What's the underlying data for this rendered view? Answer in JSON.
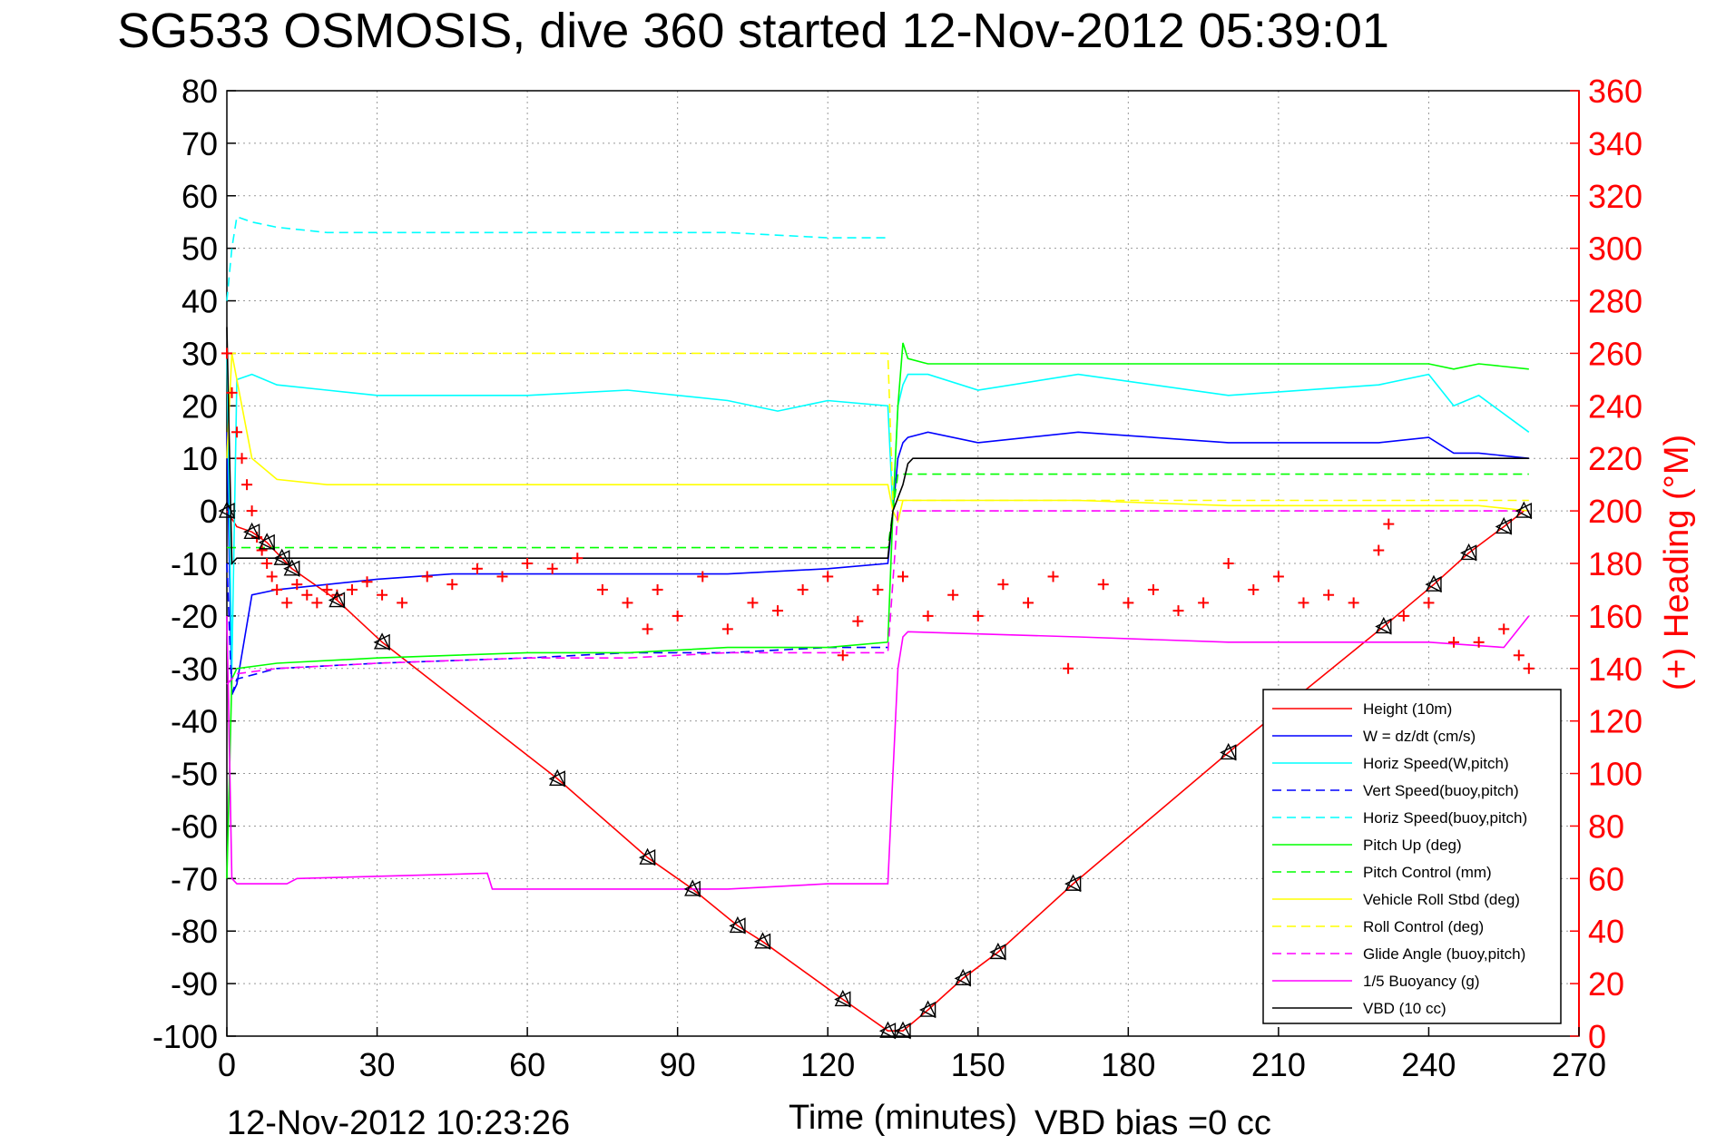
{
  "chart_data": {
    "type": "line",
    "title": "SG533 OSMOSIS, dive 360 started 12-Nov-2012 05:39:01",
    "xlabel": "Time (minutes)",
    "ylabel_right": "(+) Heading (°M)",
    "footer_timestamp": "12-Nov-2012 10:23:26",
    "footer_note": "VBD bias =0 cc",
    "xlim": [
      0,
      270
    ],
    "ylim": [
      -100,
      80
    ],
    "ylim_right": [
      0,
      360
    ],
    "x_ticks": [
      "0",
      "30",
      "60",
      "90",
      "120",
      "150",
      "180",
      "210",
      "240",
      "270"
    ],
    "y_ticks": [
      "80",
      "70",
      "60",
      "50",
      "40",
      "30",
      "20",
      "10",
      "0",
      "-10",
      "-20",
      "-30",
      "-40",
      "-50",
      "-60",
      "-70",
      "-80",
      "-90",
      "-100"
    ],
    "y_right_ticks": [
      "360",
      "340",
      "320",
      "300",
      "280",
      "260",
      "240",
      "220",
      "200",
      "180",
      "160",
      "140",
      "120",
      "100",
      "80",
      "60",
      "40",
      "20",
      "0"
    ],
    "grid": true,
    "legend_position": "lower-right",
    "series": [
      {
        "name": "Height (10m)",
        "color": "#ff0000",
        "style": "solid",
        "x": [
          0,
          2,
          5,
          8,
          11,
          13,
          22,
          31,
          66,
          84,
          93,
          102,
          107,
          123,
          132,
          135,
          140,
          147,
          154,
          169,
          200,
          231,
          241,
          248,
          255,
          259
        ],
        "y": [
          0,
          -3,
          -4,
          -6,
          -9,
          -11,
          -17,
          -25,
          -51,
          -66,
          -72,
          -79,
          -82,
          -93,
          -99,
          -99,
          -95,
          -89,
          -84,
          -71,
          -46,
          -22,
          -14,
          -8,
          -3,
          0
        ]
      },
      {
        "name": "W = dz/dt (cm/s)",
        "color": "#0000ff",
        "style": "solid",
        "x": [
          0,
          1,
          2,
          5,
          10,
          20,
          30,
          45,
          60,
          80,
          100,
          120,
          132,
          133,
          134,
          135,
          136,
          140,
          150,
          170,
          200,
          230,
          240,
          245,
          250,
          260
        ],
        "y": [
          15,
          -35,
          -33,
          -16,
          -15,
          -14,
          -13,
          -12,
          -12,
          -12,
          -12,
          -11,
          -10,
          0,
          10,
          13,
          14,
          15,
          13,
          15,
          13,
          13,
          14,
          11,
          11,
          10
        ]
      },
      {
        "name": "Horiz Speed(W,pitch)",
        "color": "#00ffff",
        "style": "solid",
        "x": [
          0,
          1,
          2,
          5,
          10,
          20,
          30,
          45,
          60,
          80,
          100,
          110,
          120,
          132,
          133,
          134,
          135,
          136,
          140,
          150,
          170,
          200,
          230,
          240,
          245,
          250,
          260
        ],
        "y": [
          30,
          -30,
          25,
          26,
          24,
          23,
          22,
          22,
          22,
          23,
          21,
          19,
          21,
          20,
          0,
          20,
          24,
          26,
          26,
          23,
          26,
          22,
          24,
          26,
          20,
          22,
          15
        ]
      },
      {
        "name": "Vert Speed(buoy,pitch)",
        "color": "#0000ff",
        "style": "dashed",
        "x": [
          0,
          1,
          2,
          10,
          30,
          60,
          80,
          100,
          120,
          132
        ],
        "y": [
          -10,
          -35,
          -32,
          -30,
          -29,
          -28,
          -27,
          -27,
          -26,
          -26
        ]
      },
      {
        "name": "Horiz Speed(buoy,pitch)",
        "color": "#00ffff",
        "style": "dashed",
        "x": [
          0,
          1,
          2,
          5,
          10,
          20,
          30,
          45,
          60,
          80,
          100,
          120,
          132
        ],
        "y": [
          40,
          50,
          56,
          55,
          54,
          53,
          53,
          53,
          53,
          53,
          53,
          52,
          52
        ]
      },
      {
        "name": "Pitch Up (deg)",
        "color": "#00ff00",
        "style": "solid",
        "x": [
          0,
          1,
          2,
          10,
          30,
          60,
          80,
          100,
          120,
          132,
          133,
          134,
          135,
          136,
          140,
          150,
          170,
          200,
          230,
          240,
          245,
          250,
          260
        ],
        "y": [
          -70,
          -32,
          -30,
          -29,
          -28,
          -27,
          -27,
          -26,
          -26,
          -25,
          0,
          20,
          32,
          29,
          28,
          28,
          28,
          28,
          28,
          28,
          27,
          28,
          27
        ]
      },
      {
        "name": "Pitch Control (mm)",
        "color": "#00ff00",
        "style": "dashed",
        "x": [
          0,
          2,
          132,
          133,
          134,
          135,
          260
        ],
        "y": [
          -7,
          -7,
          -7,
          0,
          7,
          7,
          7
        ]
      },
      {
        "name": "Vehicle Roll Stbd (deg)",
        "color": "#ffff00",
        "style": "solid",
        "x": [
          0,
          1,
          2,
          5,
          10,
          20,
          40,
          60,
          80,
          100,
          120,
          132,
          133,
          134,
          135,
          140,
          150,
          170,
          200,
          230,
          240,
          250,
          260
        ],
        "y": [
          10,
          30,
          25,
          10,
          6,
          5,
          5,
          5,
          5,
          5,
          5,
          5,
          0,
          -2,
          2,
          2,
          2,
          2,
          1,
          1,
          1,
          1,
          0
        ]
      },
      {
        "name": "Roll Control (deg)",
        "color": "#ffff00",
        "style": "dashed",
        "x": [
          0,
          2,
          10,
          132,
          133,
          134,
          260
        ],
        "y": [
          30,
          30,
          30,
          30,
          2,
          2,
          2
        ]
      },
      {
        "name": "Glide Angle (buoy,pitch)",
        "color": "#ff00ff",
        "style": "dashed",
        "x": [
          0,
          2,
          10,
          30,
          60,
          80,
          100,
          120,
          132,
          134,
          260
        ],
        "y": [
          -33,
          -31,
          -30,
          -29,
          -28,
          -28,
          -27,
          -27,
          -27,
          0,
          0
        ]
      },
      {
        "name": "1/5 Buoyancy (g)",
        "color": "#ff00ff",
        "style": "solid",
        "x": [
          0,
          1,
          2,
          12,
          14,
          52,
          53,
          85,
          100,
          120,
          132,
          133,
          134,
          135,
          136,
          170,
          200,
          240,
          255,
          260
        ],
        "y": [
          -20,
          -70,
          -71,
          -71,
          -70,
          -69,
          -72,
          -72,
          -72,
          -71,
          -71,
          -50,
          -30,
          -24,
          -23,
          -24,
          -25,
          -25,
          -26,
          -20
        ]
      },
      {
        "name": "VBD (10 cc)",
        "color": "#000000",
        "style": "solid",
        "x": [
          0,
          1,
          2,
          132,
          133,
          135,
          136,
          137,
          260
        ],
        "y": [
          35,
          -10,
          -9,
          -9,
          0,
          5,
          9,
          10,
          10
        ]
      }
    ],
    "heading": {
      "name": "(+) Heading",
      "color": "#ff0000",
      "marker": "+",
      "axis": "right",
      "x": [
        0,
        1,
        2,
        3,
        4,
        5,
        6,
        7,
        8,
        9,
        10,
        12,
        14,
        16,
        18,
        20,
        22,
        25,
        28,
        31,
        35,
        40,
        45,
        50,
        55,
        60,
        65,
        70,
        75,
        80,
        84,
        86,
        90,
        95,
        100,
        105,
        110,
        115,
        120,
        123,
        126,
        130,
        135,
        140,
        145,
        150,
        155,
        160,
        165,
        168,
        175,
        180,
        185,
        190,
        195,
        200,
        205,
        210,
        215,
        220,
        225,
        230,
        232,
        235,
        240,
        245,
        250,
        255,
        258,
        260
      ],
      "y": [
        260,
        245,
        230,
        220,
        210,
        200,
        190,
        185,
        180,
        175,
        170,
        165,
        172,
        168,
        165,
        170,
        168,
        170,
        173,
        168,
        165,
        175,
        172,
        178,
        175,
        180,
        178,
        182,
        170,
        165,
        155,
        170,
        160,
        175,
        155,
        165,
        162,
        170,
        175,
        145,
        158,
        170,
        175,
        160,
        168,
        160,
        172,
        165,
        175,
        140,
        172,
        165,
        170,
        162,
        165,
        180,
        170,
        175,
        165,
        168,
        165,
        185,
        195,
        160,
        165,
        150,
        150,
        155,
        145,
        140
      ]
    },
    "height_markers_x": [
      0,
      5,
      8,
      11,
      13,
      22,
      31,
      66,
      84,
      93,
      102,
      107,
      123,
      132,
      135,
      140,
      147,
      154,
      169,
      200,
      231,
      241,
      248,
      255,
      259
    ]
  }
}
